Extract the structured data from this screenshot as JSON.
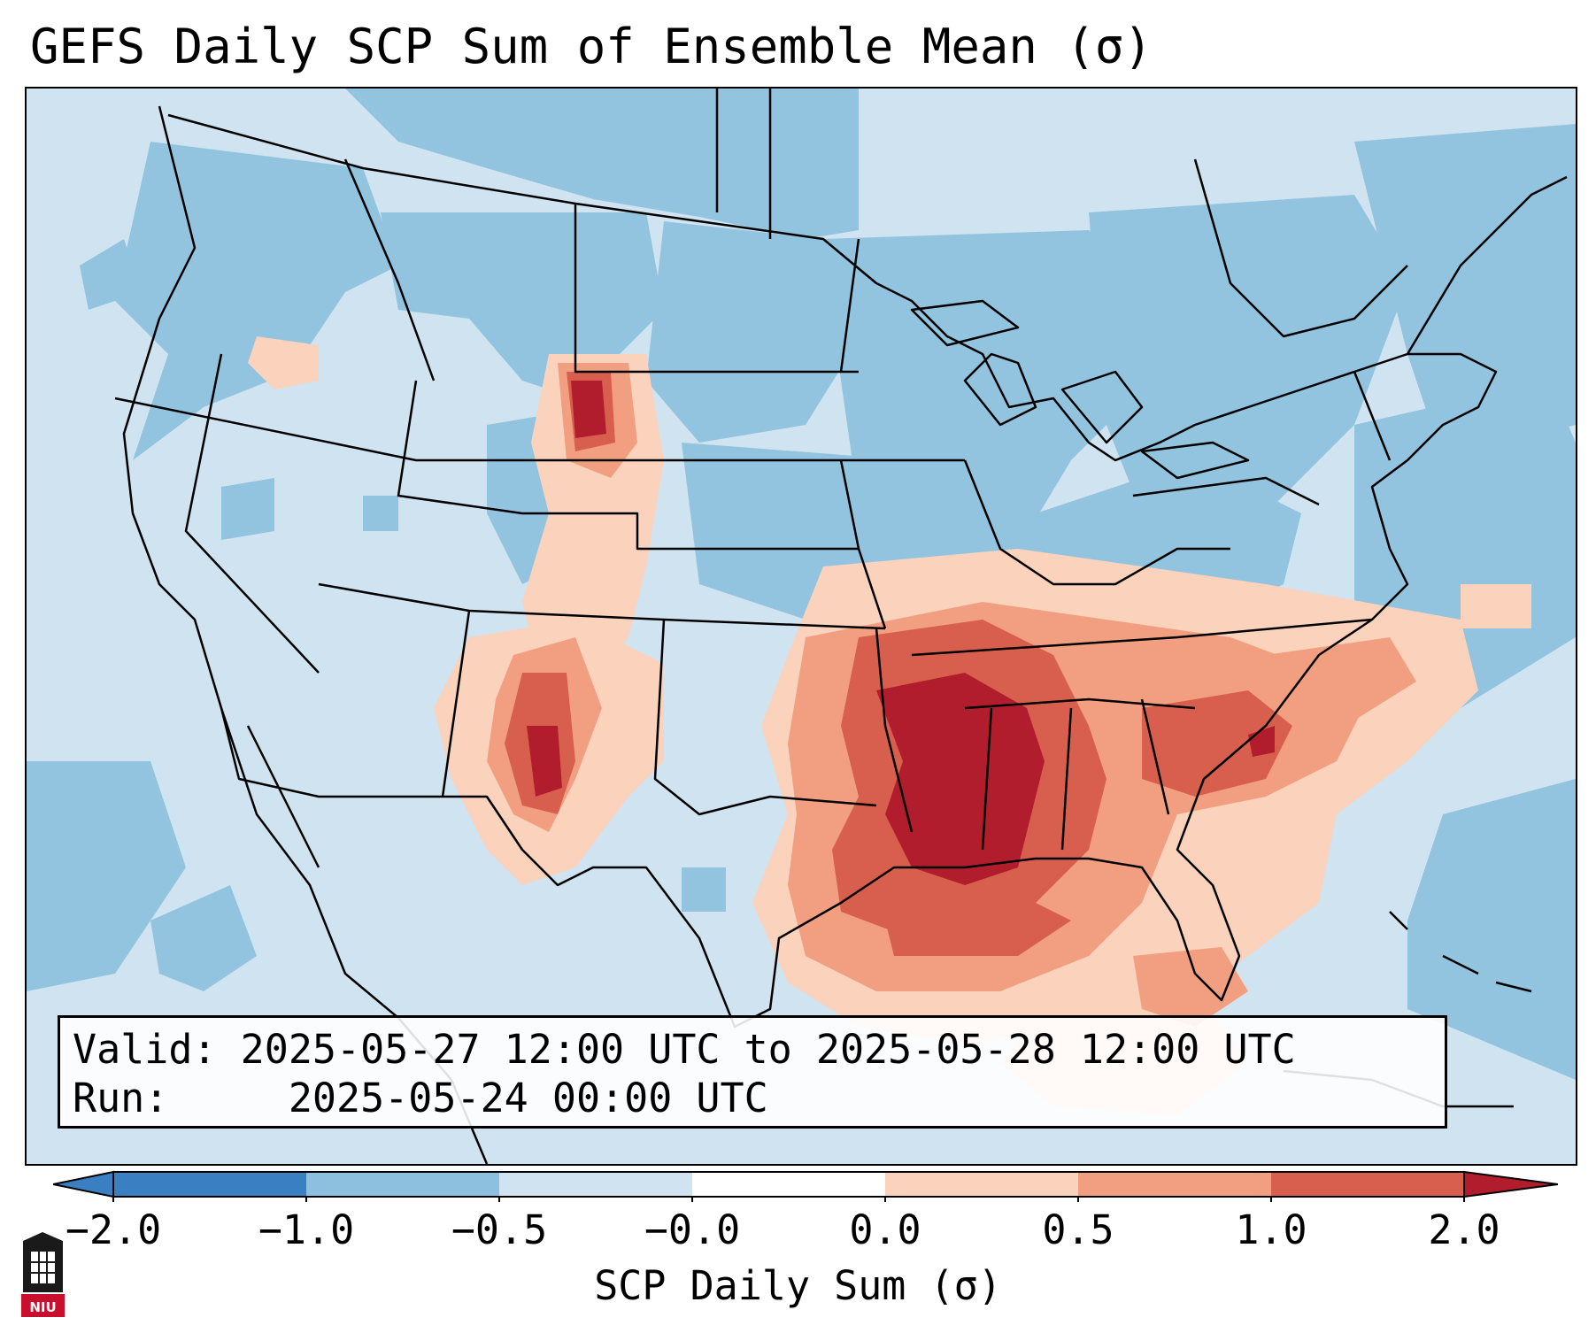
{
  "title": "GEFS Daily SCP Sum of Ensemble Mean (σ)",
  "info": {
    "valid_label": "Valid:",
    "valid_value": "2025-05-27 12:00 UTC to 2025-05-28 12:00 UTC",
    "run_label": "Run:  ",
    "run_value": "2025-05-24 00:00 UTC"
  },
  "colorbar": {
    "label": "SCP Daily Sum (σ)",
    "ticks": [
      "−2.0",
      "−1.0",
      "−0.5",
      "−0.0",
      "0.0",
      "0.5",
      "1.0",
      "2.0"
    ],
    "colors": [
      "#3a7fc2",
      "#8cc0de",
      "#cfe3f0",
      "#ffffff",
      "#fbd2bc",
      "#f19f80",
      "#d85f4e",
      "#b11d2d"
    ]
  },
  "logo": {
    "text": "NIU",
    "icon": "university-logo-icon"
  },
  "colors": {
    "sea": "#d0e3f0",
    "blue_mid": "#93c4df",
    "peach": "#fbd2bc",
    "salmon": "#f19f80",
    "red": "#d85f4e",
    "dark_red": "#b11d2d"
  }
}
